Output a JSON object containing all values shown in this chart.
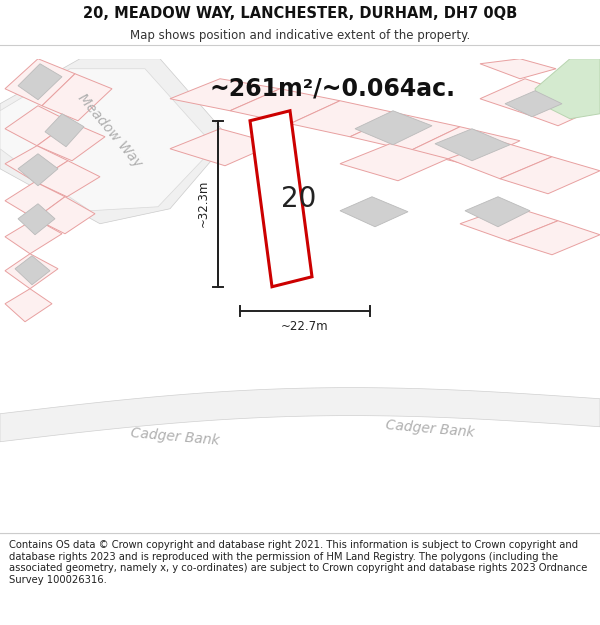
{
  "title": "20, MEADOW WAY, LANCHESTER, DURHAM, DH7 0QB",
  "subtitle": "Map shows position and indicative extent of the property.",
  "footer": "Contains OS data © Crown copyright and database right 2021. This information is subject to Crown copyright and database rights 2023 and is reproduced with the permission of HM Land Registry. The polygons (including the associated geometry, namely x, y co-ordinates) are subject to Crown copyright and database rights 2023 Ordnance Survey 100026316.",
  "area_label": "~261m²/~0.064ac.",
  "width_label": "~22.7m",
  "height_label": "~32.3m",
  "plot_number": "20",
  "bg_color": "#f8f8f8",
  "map_bg": "#ffffff",
  "parcel_fill": "#fdf0f0",
  "parcel_stroke": "#e8a0a0",
  "building_fill": "#d0d0d0",
  "building_stroke": "#bbbbbb",
  "plot_stroke": "#cc0000",
  "plot_fill": "#ffffff",
  "green_fill": "#d4eacf",
  "green_stroke": "#b8d4b0",
  "dim_color": "#222222",
  "road_fill": "#f5f5f5",
  "road_stroke": "#cccccc",
  "road_label_color": "#b0b0b0",
  "title_fontsize": 10.5,
  "subtitle_fontsize": 8.5,
  "footer_fontsize": 7.2,
  "area_fontsize": 17,
  "plot_num_fontsize": 20,
  "dim_fontsize": 8.5,
  "road_label_fontsize": 10
}
